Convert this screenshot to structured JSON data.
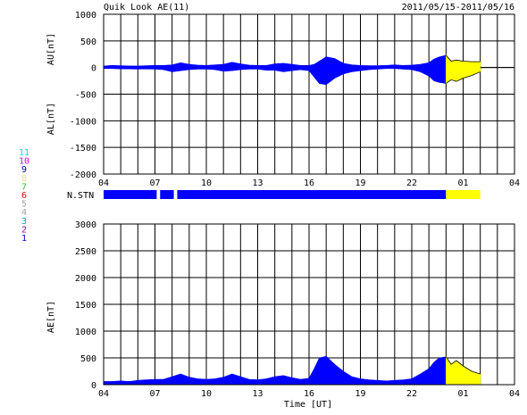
{
  "header": {
    "title": "Quik Look AE(11)",
    "date_range": "2011/05/15-2011/05/16"
  },
  "colors": {
    "final": "#0000ff",
    "provisional": "#ffff00",
    "axis": "#000000",
    "grid": "#000000",
    "tick_text": "#000000"
  },
  "station_legend": [
    {
      "label": "11",
      "color": "#00e0e0"
    },
    {
      "label": "10",
      "color": "#e000e0"
    },
    {
      "label": "9",
      "color": "#0000cc"
    },
    {
      "label": "8",
      "color": "#e8e070"
    },
    {
      "label": "7",
      "color": "#40c040"
    },
    {
      "label": "6",
      "color": "#e00000"
    },
    {
      "label": "5",
      "color": "#a0a0a0"
    },
    {
      "label": "4",
      "color": "#a0a0a0"
    },
    {
      "label": "3",
      "color": "#00a0a0"
    },
    {
      "label": "2",
      "color": "#a000a0"
    },
    {
      "label": "1",
      "color": "#0000cc"
    }
  ],
  "nstn_label": "N.STN",
  "x_axis_label": "Time [UT]",
  "chart_data": [
    {
      "type": "area",
      "title": "AU / AL",
      "ylabel_upper": "AU[nT]",
      "ylabel_lower": "AL[nT]",
      "xlim": [
        0,
        24
      ],
      "ylim": [
        -2000,
        1000
      ],
      "yticks": [
        1000,
        500,
        0,
        -500,
        -1000,
        -1500,
        -2000
      ],
      "ytick_labels": [
        "1000",
        "500",
        "0",
        "-500",
        "-1000",
        "-1500",
        "-2000"
      ],
      "xticks": [
        0,
        3,
        6,
        9,
        12,
        15,
        18,
        21,
        24
      ],
      "xtick_labels": [
        "04",
        "07",
        "10",
        "13",
        "16",
        "19",
        "22",
        "01",
        "04"
      ],
      "provisional_from": 20.0,
      "data_end": 22.0,
      "series": [
        {
          "name": "AU",
          "x": [
            0,
            0.5,
            1,
            1.5,
            2,
            2.5,
            3,
            3.5,
            4,
            4.5,
            5,
            5.5,
            6,
            6.5,
            7,
            7.5,
            8,
            8.5,
            9,
            9.5,
            10,
            10.5,
            11,
            11.5,
            12,
            12.3,
            12.6,
            13,
            13.5,
            14,
            14.5,
            15,
            15.5,
            16,
            16.5,
            17,
            17.5,
            18,
            18.5,
            19,
            19.3,
            19.6,
            20,
            20.3,
            20.6,
            21,
            21.5,
            22
          ],
          "values": [
            30,
            40,
            35,
            30,
            30,
            35,
            40,
            40,
            50,
            90,
            60,
            45,
            40,
            50,
            60,
            100,
            70,
            45,
            40,
            40,
            70,
            80,
            60,
            40,
            40,
            60,
            120,
            200,
            170,
            80,
            50,
            40,
            35,
            35,
            40,
            50,
            40,
            45,
            60,
            90,
            160,
            200,
            230,
            120,
            140,
            120,
            110,
            110
          ]
        },
        {
          "name": "AL",
          "x": [
            0,
            0.5,
            1,
            1.5,
            2,
            2.5,
            3,
            3.5,
            4,
            4.5,
            5,
            5.5,
            6,
            6.5,
            7,
            7.5,
            8,
            8.5,
            9,
            9.5,
            10,
            10.5,
            11,
            11.5,
            12,
            12.3,
            12.6,
            13,
            13.5,
            14,
            14.5,
            15,
            15.5,
            16,
            16.5,
            17,
            17.5,
            18,
            18.5,
            19,
            19.3,
            19.6,
            20,
            20.3,
            20.6,
            21,
            21.5,
            22
          ],
          "values": [
            -20,
            -20,
            -25,
            -25,
            -30,
            -25,
            -30,
            -40,
            -80,
            -60,
            -40,
            -30,
            -30,
            -40,
            -70,
            -60,
            -40,
            -30,
            -30,
            -50,
            -50,
            -80,
            -60,
            -40,
            -60,
            -180,
            -300,
            -320,
            -200,
            -120,
            -80,
            -60,
            -40,
            -30,
            -20,
            -20,
            -30,
            -40,
            -80,
            -160,
            -250,
            -280,
            -300,
            -230,
            -260,
            -200,
            -150,
            -80
          ]
        }
      ]
    },
    {
      "type": "bar",
      "title": "N.STN",
      "xlim": [
        0,
        24
      ],
      "segments": [
        {
          "from": 0,
          "to": 3.1,
          "status": "final"
        },
        {
          "from": 3.3,
          "to": 4.1,
          "status": "final"
        },
        {
          "from": 4.3,
          "to": 20.0,
          "status": "final"
        },
        {
          "from": 20.0,
          "to": 22.0,
          "status": "provisional"
        }
      ]
    },
    {
      "type": "area",
      "title": "AE",
      "ylabel": "AE[nT]",
      "xlabel": "Time [UT]",
      "xlim": [
        0,
        24
      ],
      "ylim": [
        0,
        3000
      ],
      "yticks": [
        3000,
        2500,
        2000,
        1500,
        1000,
        500,
        0
      ],
      "ytick_labels": [
        "3000",
        "2500",
        "2000",
        "1500",
        "1000",
        "500",
        "0"
      ],
      "xticks": [
        0,
        3,
        6,
        9,
        12,
        15,
        18,
        21,
        24
      ],
      "xtick_labels": [
        "04",
        "07",
        "10",
        "13",
        "16",
        "19",
        "22",
        "01",
        "04"
      ],
      "provisional_from": 20.0,
      "data_end": 22.0,
      "series": [
        {
          "name": "AE",
          "x": [
            0,
            0.5,
            1,
            1.5,
            2,
            2.5,
            3,
            3.5,
            4,
            4.5,
            5,
            5.5,
            6,
            6.5,
            7,
            7.5,
            8,
            8.5,
            9,
            9.5,
            10,
            10.5,
            11,
            11.5,
            12,
            12.3,
            12.6,
            13,
            13.5,
            14,
            14.5,
            15,
            15.5,
            16,
            16.5,
            17,
            17.5,
            18,
            18.5,
            19,
            19.3,
            19.6,
            20,
            20.3,
            20.6,
            21,
            21.5,
            22
          ],
          "values": [
            60,
            60,
            70,
            60,
            80,
            90,
            100,
            100,
            150,
            200,
            140,
            110,
            100,
            110,
            140,
            200,
            150,
            100,
            90,
            110,
            150,
            170,
            130,
            100,
            120,
            300,
            500,
            530,
            380,
            250,
            150,
            110,
            90,
            80,
            70,
            80,
            90,
            110,
            200,
            300,
            420,
            500,
            520,
            380,
            450,
            350,
            250,
            200
          ]
        }
      ]
    }
  ]
}
